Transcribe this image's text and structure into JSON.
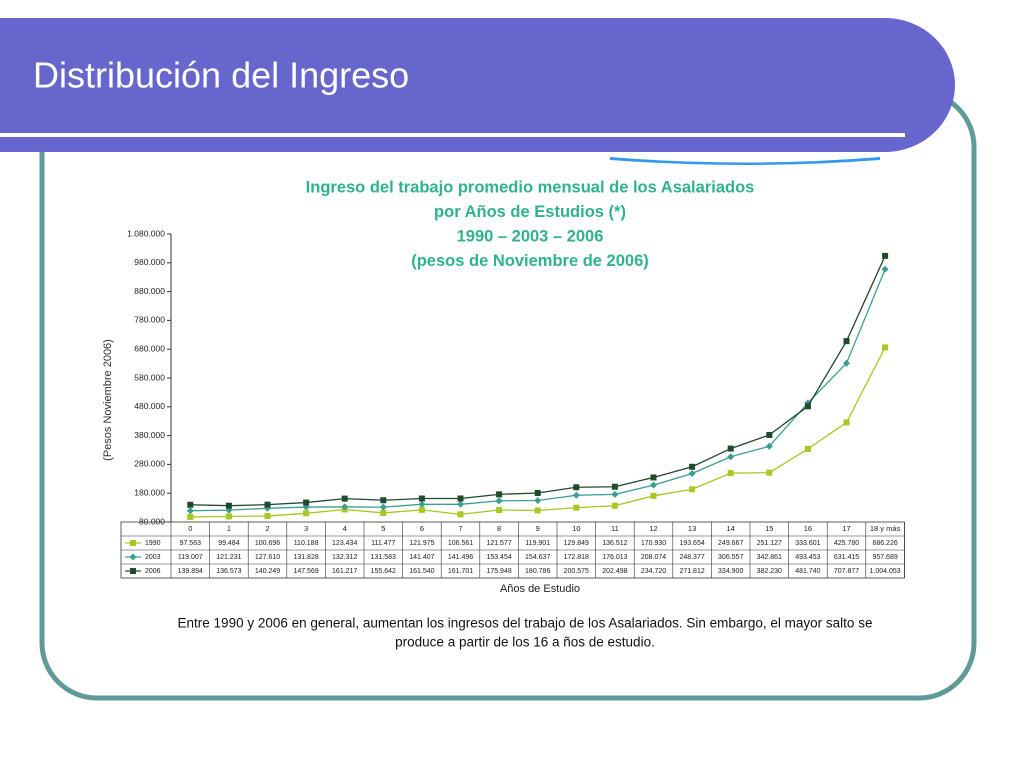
{
  "slide": {
    "title": "Distribución del Ingreso",
    "caption": [
      "Entre 1990 y 2006 en general, aumentan los ingresos del trabajo de los Asalariados. Sin embargo, el mayor salto se",
      "produce a partir de los 16 a ños de estudio."
    ]
  },
  "chart_data": {
    "type": "line",
    "title": [
      "Ingreso del trabajo promedio mensual de los Asalariados",
      "por Años de Estudios (*)",
      "1990 – 2003 – 2006",
      "(pesos de Noviembre de 2006)"
    ],
    "x_label": "Años de Estudio",
    "y_label": "(Pesos Noviembre 2006)",
    "categories": [
      "0",
      "1",
      "2",
      "3",
      "4",
      "5",
      "6",
      "7",
      "8",
      "9",
      "10",
      "11",
      "12",
      "13",
      "14",
      "15",
      "16",
      "17",
      "18 y más"
    ],
    "ylim": [
      80000,
      1080000
    ],
    "yticks": [
      {
        "value": 80000,
        "label": "80.000"
      },
      {
        "value": 180000,
        "label": "180.000"
      },
      {
        "value": 280000,
        "label": "280.000"
      },
      {
        "value": 380000,
        "label": "380.000"
      },
      {
        "value": 480000,
        "label": "480.000"
      },
      {
        "value": 580000,
        "label": "580.000"
      },
      {
        "value": 680000,
        "label": "680.000"
      },
      {
        "value": 780000,
        "label": "780.000"
      },
      {
        "value": 880000,
        "label": "880.000"
      },
      {
        "value": 980000,
        "label": "980.000"
      },
      {
        "value": 1080000,
        "label": "1.080.000"
      }
    ],
    "grid": false,
    "series": [
      {
        "name": "1990",
        "color": "#a6c820",
        "marker": "square",
        "values": [
          97563,
          99484,
          100696,
          110188,
          123434,
          111477,
          121975,
          106561,
          121577,
          119901,
          129849,
          136512,
          170930,
          193654,
          249667,
          251127,
          333601,
          425780,
          686226
        ],
        "value_labels": [
          "97.563",
          "99.484",
          "100.696",
          "110.188",
          "123.434",
          "111.477",
          "121.975",
          "106.561",
          "121.577",
          "119.901",
          "129.849",
          "136.512",
          "170.930",
          "193.654",
          "249.667",
          "251.127",
          "333.601",
          "425.780",
          "686.226"
        ]
      },
      {
        "name": "2003",
        "color": "#3a9e94",
        "marker": "diamond",
        "values": [
          119007,
          121231,
          127610,
          131828,
          132312,
          131583,
          141407,
          141496,
          153454,
          154637,
          172818,
          176013,
          208074,
          248377,
          306557,
          342861,
          493453,
          631415,
          957689
        ],
        "value_labels": [
          "119.007",
          "121.231",
          "127.610",
          "131.828",
          "132.312",
          "131.583",
          "141.407",
          "141.496",
          "153.454",
          "154.637",
          "172.818",
          "176.013",
          "208.074",
          "248.377",
          "306.557",
          "342.861",
          "493.453",
          "631.415",
          "957.689"
        ]
      },
      {
        "name": "2006",
        "color": "#1f4a2c",
        "marker": "square",
        "values": [
          139894,
          136573,
          140249,
          147569,
          161217,
          155642,
          161540,
          161701,
          175948,
          180786,
          200575,
          202498,
          234720,
          271812,
          334900,
          382230,
          481740,
          707877,
          1004053
        ],
        "value_labels": [
          "139.894",
          "136.573",
          "140.249",
          "147.569",
          "161.217",
          "155.642",
          "161.540",
          "161.701",
          "175.948",
          "180.786",
          "200.575",
          "202.498",
          "234.720",
          "271.812",
          "334.900",
          "382.230",
          "481.740",
          "707.877",
          "1.004.053"
        ]
      }
    ]
  }
}
